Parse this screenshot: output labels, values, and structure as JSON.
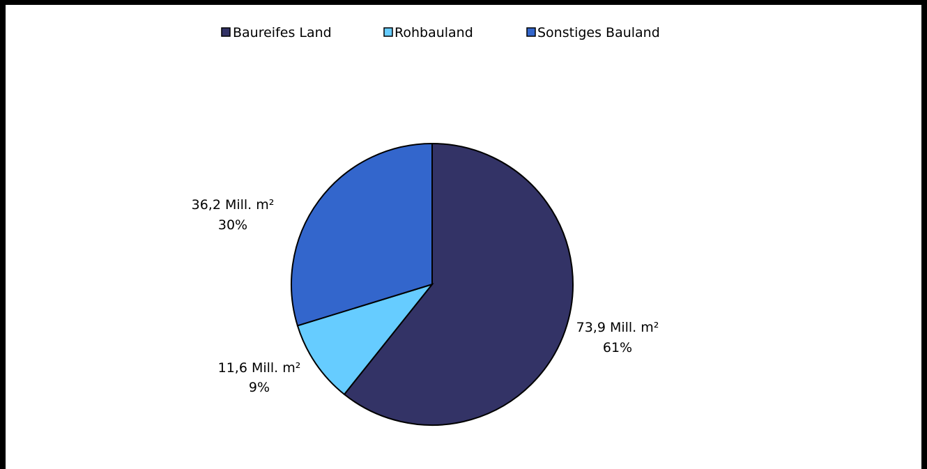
{
  "chart_data": {
    "type": "pie",
    "title": "",
    "legend_position": "top",
    "slices": [
      {
        "name": "Baureifes Land",
        "value": 73.9,
        "color": "#333366",
        "label_value": "73,9 Mill. m²",
        "label_percent": "61%"
      },
      {
        "name": "Rohbauland",
        "value": 11.6,
        "color": "#66CCFF",
        "label_value": "11,6 Mill. m²",
        "label_percent": "9%"
      },
      {
        "name": "Sonstiges Bauland",
        "value": 36.2,
        "color": "#3366CC",
        "label_value": "36,2 Mill. m²",
        "label_percent": "30%"
      }
    ]
  }
}
